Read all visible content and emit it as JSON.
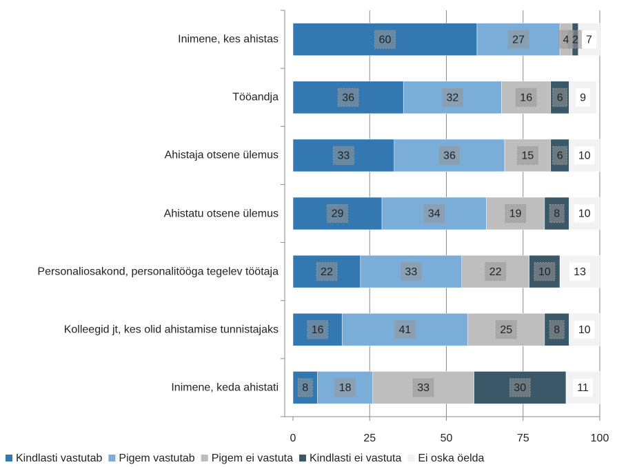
{
  "chart_data": {
    "type": "stacked_bar_horizontal",
    "categories": [
      "Inimene, kes ahistas",
      "Tööandja",
      "Ahistaja otsene ülemus",
      "Ahistatu otsene ülemus",
      "Personaliosakond, personalitööga tegelev töötaja",
      "Kolleegid jt, kes olid ahistamise tunnistajaks",
      "Inimene, keda ahistati"
    ],
    "series": [
      {
        "name": "Kindlasti vastutab",
        "color": "#3478b2",
        "values": [
          60,
          36,
          33,
          29,
          22,
          16,
          8
        ]
      },
      {
        "name": "Pigem vastutab",
        "color": "#7badd9",
        "values": [
          27,
          32,
          36,
          34,
          33,
          41,
          18
        ]
      },
      {
        "name": "Pigem ei vastuta",
        "color": "#bebebe",
        "values": [
          4,
          16,
          15,
          19,
          22,
          25,
          33
        ]
      },
      {
        "name": "Kindlasti ei vastuta",
        "color": "#3b5868",
        "values": [
          2,
          6,
          6,
          8,
          10,
          8,
          30
        ]
      },
      {
        "name": "Ei oska öelda",
        "color": "#f2f2f2",
        "values": [
          7,
          9,
          10,
          10,
          13,
          10,
          11
        ]
      }
    ],
    "xlim": [
      0,
      100
    ],
    "xticks": [
      0,
      25,
      50,
      75,
      100
    ],
    "grid": true,
    "legend": "bottom"
  }
}
